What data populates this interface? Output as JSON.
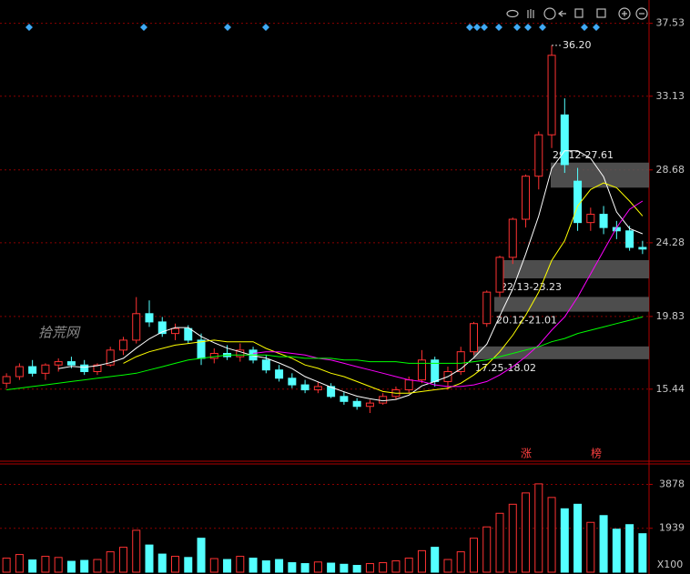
{
  "chart_data": {
    "type": "candlestick",
    "watermark": "拾荒网",
    "ylim": [
      11.2,
      38.5
    ],
    "yticks": [
      15.44,
      19.83,
      24.28,
      28.68,
      33.13,
      37.53
    ],
    "grid": true,
    "up_color": "#ff3232",
    "down_color": "#54ffff",
    "open": [
      15.8,
      16.2,
      16.8,
      16.4,
      16.9,
      17.1,
      16.9,
      16.5,
      16.9,
      17.8,
      18.4,
      20.0,
      19.5,
      18.8,
      19.1,
      18.4,
      17.3,
      17.6,
      17.4,
      17.8,
      17.2,
      16.6,
      16.1,
      15.7,
      15.4,
      15.6,
      15.0,
      14.7,
      14.4,
      14.6,
      15.0,
      15.4,
      16.0,
      17.2,
      15.9,
      16.5,
      17.7,
      19.4,
      21.3,
      23.4,
      25.7,
      28.3,
      30.8,
      32.0,
      28.0,
      25.5,
      26.0,
      25.2,
      25.0,
      24.0
    ],
    "high": [
      16.4,
      17.0,
      17.2,
      17.0,
      17.3,
      17.4,
      17.2,
      17.0,
      18.0,
      18.6,
      21.0,
      20.8,
      19.8,
      19.4,
      19.3,
      18.8,
      17.9,
      18.1,
      18.2,
      18.0,
      17.5,
      16.9,
      16.4,
      16.0,
      15.9,
      15.8,
      15.3,
      14.9,
      14.8,
      15.2,
      15.6,
      16.2,
      17.8,
      17.4,
      16.8,
      18.0,
      19.5,
      21.4,
      23.5,
      25.8,
      28.4,
      31.0,
      36.2,
      33.0,
      28.8,
      26.4,
      26.5,
      25.6,
      25.3,
      24.4
    ],
    "low": [
      15.5,
      16.0,
      16.2,
      16.0,
      16.5,
      16.7,
      16.3,
      16.3,
      16.8,
      17.5,
      18.2,
      19.2,
      18.6,
      18.4,
      18.2,
      16.9,
      17.0,
      17.2,
      17.1,
      17.0,
      16.4,
      15.9,
      15.5,
      15.2,
      15.2,
      14.9,
      14.5,
      14.2,
      14.0,
      14.5,
      14.8,
      15.2,
      15.8,
      15.6,
      15.4,
      16.3,
      17.5,
      19.2,
      21.0,
      23.0,
      25.2,
      27.5,
      30.0,
      28.5,
      25.0,
      25.0,
      24.8,
      24.5,
      23.8,
      23.6
    ],
    "close": [
      16.2,
      16.8,
      16.4,
      16.9,
      17.1,
      16.9,
      16.5,
      16.9,
      17.8,
      18.4,
      20.0,
      19.5,
      18.8,
      19.1,
      18.4,
      17.3,
      17.6,
      17.4,
      17.8,
      17.2,
      16.6,
      16.1,
      15.7,
      15.4,
      15.6,
      15.0,
      14.7,
      14.4,
      14.6,
      15.0,
      15.4,
      16.0,
      17.2,
      15.9,
      16.5,
      17.7,
      19.4,
      21.3,
      23.4,
      25.7,
      28.3,
      30.8,
      35.6,
      29.0,
      25.5,
      26.0,
      25.2,
      25.0,
      24.0,
      23.9
    ],
    "overlays": [
      {
        "color": "#ffffff",
        "values": [
          null,
          null,
          null,
          null,
          16.68,
          16.82,
          16.76,
          16.86,
          17.04,
          17.3,
          17.92,
          18.48,
          18.9,
          19.16,
          19.16,
          18.62,
          18.24,
          17.92,
          17.7,
          17.46,
          17.32,
          17.02,
          16.68,
          16.2,
          15.88,
          15.56,
          15.28,
          15.02,
          14.86,
          14.74,
          14.82,
          15.08,
          15.64,
          15.9,
          16.2,
          16.66,
          17.34,
          18.16,
          19.86,
          21.5,
          23.6,
          25.9,
          28.76,
          29.84,
          29.84,
          29.38,
          28.26,
          26.14,
          25.14,
          24.82
        ]
      },
      {
        "color": "#ffff00",
        "values": [
          null,
          null,
          null,
          null,
          null,
          null,
          null,
          null,
          null,
          17.0,
          17.4,
          17.7,
          17.9,
          18.1,
          18.2,
          18.3,
          18.4,
          18.3,
          18.3,
          18.3,
          17.9,
          17.6,
          17.3,
          16.9,
          16.7,
          16.4,
          16.2,
          15.9,
          15.6,
          15.3,
          15.2,
          15.2,
          15.3,
          15.4,
          15.5,
          15.8,
          16.3,
          16.9,
          17.7,
          18.7,
          19.9,
          21.3,
          23.2,
          24.4,
          26.5,
          27.5,
          27.9,
          27.6,
          26.8,
          25.9
        ]
      },
      {
        "color": "#ff00ff",
        "values": [
          null,
          null,
          null,
          null,
          null,
          null,
          null,
          null,
          null,
          null,
          null,
          null,
          null,
          null,
          null,
          null,
          null,
          null,
          null,
          17.6,
          17.7,
          17.7,
          17.6,
          17.5,
          17.3,
          17.2,
          17.0,
          16.8,
          16.6,
          16.4,
          16.2,
          16.0,
          15.9,
          15.7,
          15.6,
          15.6,
          15.7,
          15.9,
          16.3,
          16.8,
          17.4,
          18.1,
          19.0,
          19.8,
          21.0,
          22.4,
          23.8,
          25.2,
          26.3,
          26.8
        ]
      },
      {
        "color": "#00ff00",
        "values": [
          15.4,
          15.5,
          15.6,
          15.7,
          15.8,
          15.9,
          16.0,
          16.1,
          16.2,
          16.3,
          16.4,
          16.6,
          16.8,
          17.0,
          17.2,
          17.3,
          17.4,
          17.5,
          17.5,
          17.5,
          17.5,
          17.4,
          17.4,
          17.3,
          17.3,
          17.3,
          17.2,
          17.2,
          17.1,
          17.1,
          17.1,
          17.0,
          17.0,
          17.0,
          17.0,
          17.0,
          17.1,
          17.2,
          17.4,
          17.6,
          17.8,
          18.0,
          18.3,
          18.5,
          18.8,
          19.0,
          19.2,
          19.4,
          19.6,
          19.8
        ]
      }
    ],
    "peak": {
      "value": 36.2,
      "label": "36.20"
    },
    "zones": [
      {
        "label": "29.12-27.61",
        "range": [
          27.61,
          29.12
        ]
      },
      {
        "label": "22.13-23.23",
        "range": [
          22.13,
          23.23
        ]
      },
      {
        "label": "20.12-21.01",
        "range": [
          20.12,
          21.01
        ]
      },
      {
        "label": "17.25-18.02",
        "range": [
          17.25,
          18.02
        ]
      }
    ],
    "marks_text": [
      "涨",
      "榜"
    ],
    "volume": {
      "values": [
        620,
        780,
        540,
        700,
        650,
        480,
        520,
        560,
        900,
        1100,
        1850,
        1200,
        800,
        700,
        650,
        1500,
        600,
        560,
        700,
        620,
        500,
        560,
        420,
        380,
        450,
        400,
        350,
        300,
        380,
        420,
        500,
        620,
        950,
        1100,
        560,
        900,
        1500,
        2000,
        2600,
        3000,
        3500,
        3900,
        3300,
        2800,
        3000,
        2200,
        2500,
        1900,
        2100,
        1700
      ],
      "ylim": [
        0,
        4700
      ],
      "yticks": [
        1939,
        3878
      ],
      "unit": "X100"
    }
  }
}
